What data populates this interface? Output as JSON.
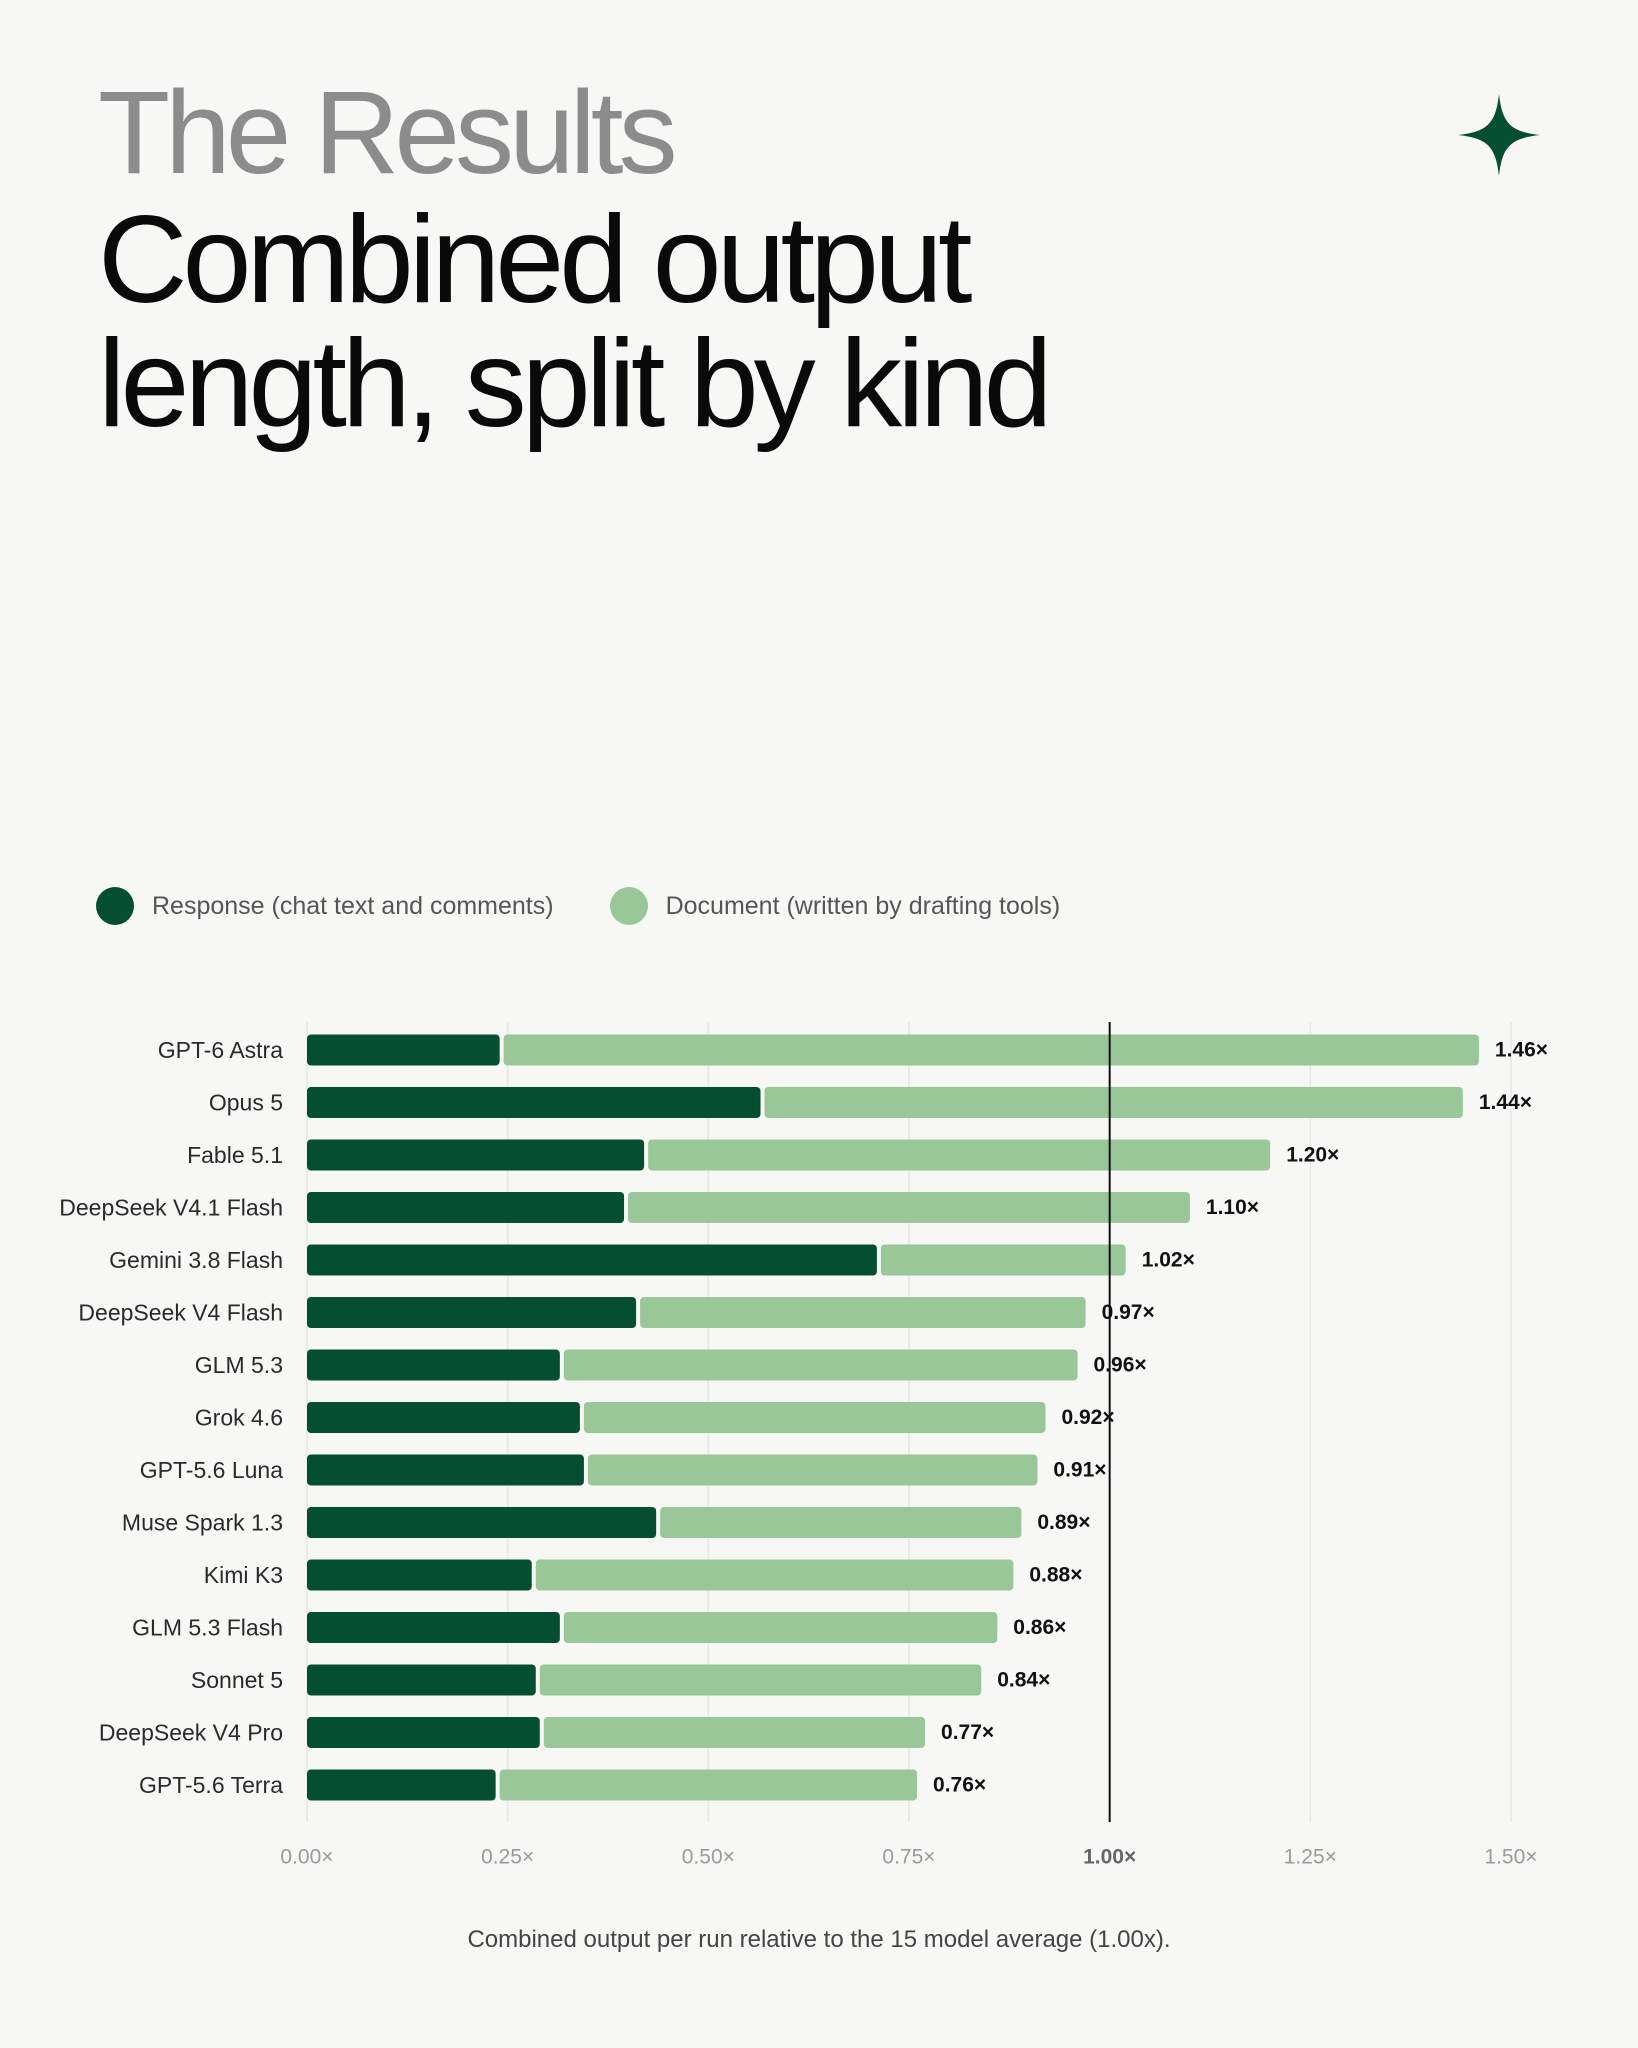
{
  "header": {
    "eyebrow": "The Results",
    "title": "Combined output length, split by kind"
  },
  "colors": {
    "response": "#044e32",
    "document": "#9ac797",
    "accent": "#044e32",
    "grid": "#e6e6e6",
    "reference_line": "#111111"
  },
  "icons": {
    "logo": "four-point-sparkle-icon"
  },
  "legend": {
    "response_label": "Response (chat text and comments)",
    "document_label": "Document (written by drafting tools)"
  },
  "caption": "Combined output per run relative to the 15 model average (1.00x).",
  "chart_data": {
    "type": "bar",
    "orientation": "horizontal",
    "stacked": true,
    "categories": [
      "GPT-6 Astra",
      "Opus 5",
      "Fable 5.1",
      "DeepSeek V4.1 Flash",
      "Gemini 3.8 Flash",
      "DeepSeek V4 Flash",
      "GLM 5.3",
      "Grok 4.6",
      "GPT-5.6 Luna",
      "Muse Spark 1.3",
      "Kimi K3",
      "GLM 5.3 Flash",
      "Sonnet 5",
      "DeepSeek V4 Pro",
      "GPT-5.6 Terra"
    ],
    "series": [
      {
        "name": "Response (chat text and comments)",
        "values": [
          0.24,
          0.565,
          0.42,
          0.395,
          0.71,
          0.41,
          0.315,
          0.34,
          0.345,
          0.435,
          0.28,
          0.315,
          0.285,
          0.29,
          0.235
        ]
      },
      {
        "name": "Document (written by drafting tools)",
        "values": [
          1.22,
          0.875,
          0.78,
          0.705,
          0.31,
          0.56,
          0.645,
          0.58,
          0.565,
          0.455,
          0.6,
          0.545,
          0.555,
          0.48,
          0.525
        ]
      }
    ],
    "totals": [
      1.46,
      1.44,
      1.2,
      1.1,
      1.02,
      0.97,
      0.96,
      0.92,
      0.91,
      0.89,
      0.88,
      0.86,
      0.84,
      0.77,
      0.76
    ],
    "total_labels": [
      "1.46×",
      "1.44×",
      "1.20×",
      "1.10×",
      "1.02×",
      "0.97×",
      "0.96×",
      "0.92×",
      "0.91×",
      "0.89×",
      "0.88×",
      "0.86×",
      "0.84×",
      "0.77×",
      "0.76×"
    ],
    "xlim": [
      0,
      1.5
    ],
    "xticks": [
      0,
      0.25,
      0.5,
      0.75,
      1.0,
      1.25,
      1.5
    ],
    "xtick_labels": [
      "0.00×",
      "0.25×",
      "0.50×",
      "0.75×",
      "1.00×",
      "1.25×",
      "1.50×"
    ],
    "reference_value": 1.0,
    "grid": true,
    "legend_position": "top-left"
  }
}
